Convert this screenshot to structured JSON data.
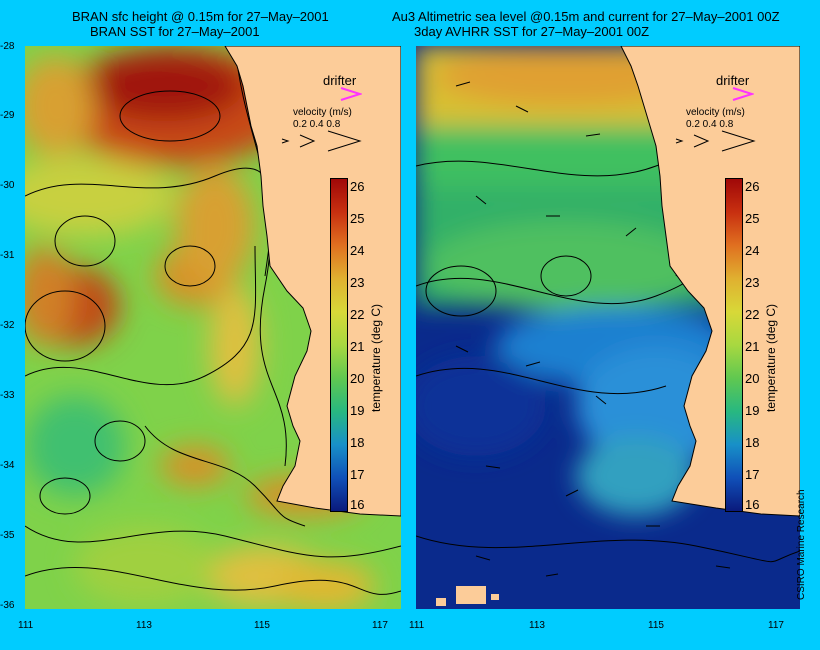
{
  "titles": {
    "left_line1": "BRAN sfc height @ 0.15m for 27–May–2001",
    "left_line2": "BRAN SST for 27–May–2001",
    "right_line1": "Au3 Altimetric sea level  @0.15m and current for 27–May–2001 00Z",
    "right_line2": "3day AVHRR SST for 27–May–2001 00Z"
  },
  "y_ticks": [
    "-28",
    "-29",
    "-30",
    "-31",
    "-32",
    "-33",
    "-34",
    "-35",
    "-36"
  ],
  "x_ticks": [
    "111",
    "113",
    "115",
    "117"
  ],
  "legend": {
    "drifter_label": "drifter",
    "velocity_label": "velocity (m/s)",
    "velocity_values": "0.2 0.4 0.8"
  },
  "colorbar": {
    "unit_label": "temperature (deg C)",
    "ticks": [
      "26",
      "25",
      "24",
      "23",
      "22",
      "21",
      "20",
      "19",
      "18",
      "17",
      "16"
    ]
  },
  "credit": "CSIRO Marine Research",
  "colors": {
    "background": "#00ccff",
    "land": "#fccc99",
    "drifter": "#ff33ff"
  },
  "icons": {
    "drifter_symbol": "magenta-chevron-icon",
    "velocity_arrows": "arrow-icon"
  }
}
